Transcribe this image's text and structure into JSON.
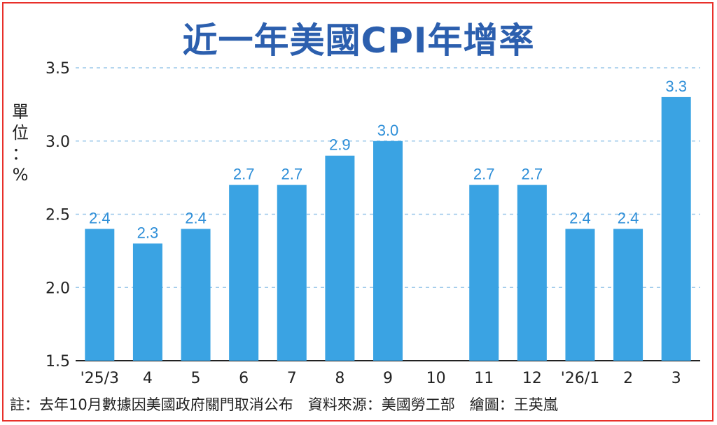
{
  "chart_data": {
    "type": "bar",
    "title": "近一年美國CPI年增率",
    "ylabel": "單位：%",
    "categories": [
      "'25/3",
      "4",
      "5",
      "6",
      "7",
      "8",
      "9",
      "10",
      "11",
      "12",
      "'26/1",
      "2",
      "3"
    ],
    "values": [
      2.4,
      2.3,
      2.4,
      2.7,
      2.7,
      2.9,
      3.0,
      null,
      2.7,
      2.7,
      2.4,
      2.4,
      3.3
    ],
    "value_labels": [
      "2.4",
      "2.3",
      "2.4",
      "2.7",
      "2.7",
      "2.9",
      "3.0",
      "",
      "2.7",
      "2.7",
      "2.4",
      "2.4",
      "3.3"
    ],
    "ylim": [
      1.5,
      3.5
    ],
    "yticks": [
      "1.5",
      "2.0",
      "2.5",
      "3.0",
      "3.5"
    ],
    "grid": "horizontal dashed",
    "colors": {
      "bar": "#3aa3e3",
      "title": "#2c5fae",
      "grid": "#9cc8ea",
      "border": "#e8302a"
    }
  },
  "footnote": "註：去年10月數據因美國政府關門取消公布　資料來源：美國勞工部　繪圖：王英嵐"
}
